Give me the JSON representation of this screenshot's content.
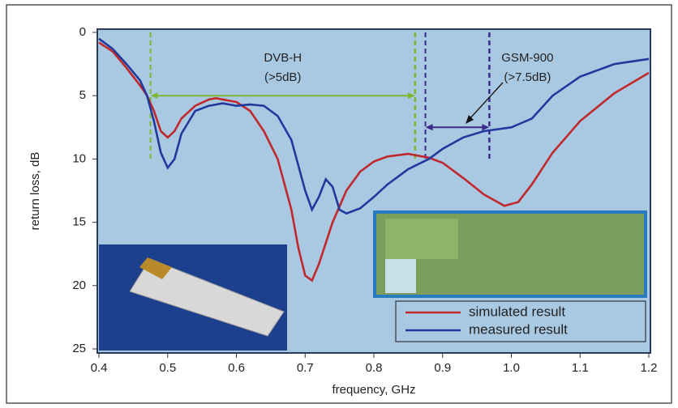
{
  "chart_data": {
    "type": "line",
    "x_label": "frequency, GHz",
    "y_label": "return loss, dB",
    "xlim": [
      0.4,
      1.2
    ],
    "xticks": [
      0.4,
      0.5,
      0.6,
      0.7,
      0.8,
      0.9,
      {
        "value": 1,
        "label": "1.0"
      },
      1.1,
      1.2
    ],
    "ylim": [
      0,
      25
    ],
    "yticks": [
      0,
      5,
      10,
      15,
      20,
      25
    ],
    "y_inverted": true,
    "legend": "lower right",
    "series": [
      {
        "name": "simulated result",
        "color": "#c0282c",
        "x": [
          0.4,
          0.42,
          0.44,
          0.46,
          0.47,
          0.48,
          0.49,
          0.5,
          0.51,
          0.52,
          0.54,
          0.56,
          0.57,
          0.6,
          0.62,
          0.64,
          0.66,
          0.68,
          0.69,
          0.7,
          0.71,
          0.72,
          0.74,
          0.76,
          0.78,
          0.8,
          0.82,
          0.85,
          0.88,
          0.9,
          0.93,
          0.96,
          0.99,
          1.01,
          1.03,
          1.06,
          1.1,
          1.15,
          1.2
        ],
        "values": [
          0.8,
          1.5,
          2.8,
          4.2,
          5,
          6.2,
          7.8,
          8.3,
          7.8,
          6.8,
          5.8,
          5.3,
          5.2,
          5.5,
          6.2,
          7.8,
          10,
          14,
          17,
          19.2,
          19.6,
          18.3,
          15,
          12.5,
          11,
          10.2,
          9.8,
          9.6,
          9.9,
          10.3,
          11.5,
          12.8,
          13.7,
          13.4,
          12,
          9.5,
          7,
          4.8,
          3.2
        ]
      },
      {
        "name": "measured result",
        "color": "#1f3a9c",
        "x": [
          0.4,
          0.42,
          0.44,
          0.46,
          0.47,
          0.48,
          0.49,
          0.5,
          0.51,
          0.52,
          0.54,
          0.56,
          0.58,
          0.6,
          0.62,
          0.64,
          0.66,
          0.68,
          0.7,
          0.71,
          0.72,
          0.73,
          0.74,
          0.75,
          0.76,
          0.78,
          0.8,
          0.82,
          0.85,
          0.88,
          0.9,
          0.93,
          0.96,
          1.0,
          1.03,
          1.06,
          1.1,
          1.15,
          1.2
        ],
        "values": [
          0.5,
          1.3,
          2.5,
          3.8,
          5,
          7,
          9.5,
          10.7,
          10,
          8,
          6.2,
          5.8,
          5.6,
          5.8,
          5.7,
          5.8,
          6.6,
          8.5,
          12.5,
          14,
          13,
          11.6,
          12.2,
          14,
          14.3,
          13.9,
          13,
          12,
          10.8,
          10,
          9.2,
          8.3,
          7.8,
          7.5,
          6.8,
          5,
          3.5,
          2.5,
          2.1
        ]
      }
    ],
    "bands": [
      {
        "label": "DVB-H",
        "sublabel": "(>5dB)",
        "x": [
          0.475,
          0.86
        ],
        "level": 5,
        "color": "#7ab830"
      },
      {
        "label": "GSM-900",
        "sublabel": "(>7.5dB)",
        "x": [
          0.875,
          0.968
        ],
        "level": 7.5,
        "color": "#3a2a8a"
      }
    ]
  }
}
